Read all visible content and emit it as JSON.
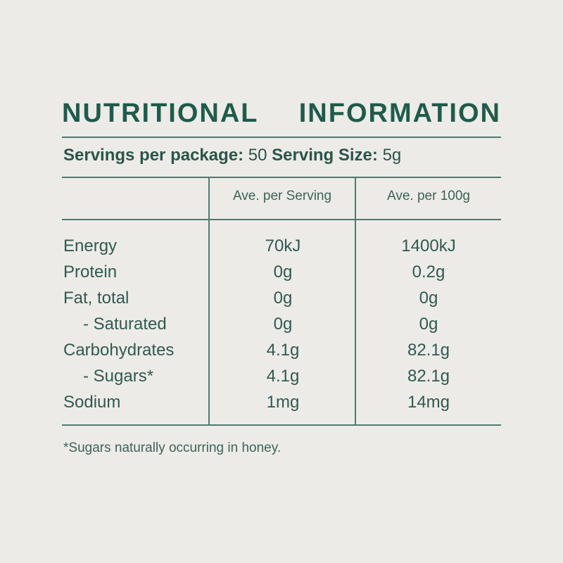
{
  "title": "NUTRITIONAL INFORMATION",
  "servings": {
    "per_package_label": "Servings per package:",
    "per_package_value": "50",
    "size_label": "Serving Size:",
    "size_value": "5g"
  },
  "columns": [
    "Ave. per Serving",
    "Ave. per 100g"
  ],
  "rows": [
    {
      "name": "Energy",
      "serving": "70kJ",
      "per100": "1400kJ"
    },
    {
      "name": "Protein",
      "serving": "0g",
      "per100": "0.2g"
    },
    {
      "name": "Fat, total",
      "serving": "0g",
      "per100": "0g"
    },
    {
      "name": "  - Saturated",
      "serving": "0g",
      "per100": "0g"
    },
    {
      "name": "Carbohydrates",
      "serving": "4.1g",
      "per100": "82.1g"
    },
    {
      "name": "  - Sugars*",
      "serving": "4.1g",
      "per100": "82.1g"
    },
    {
      "name": "Sodium",
      "serving": "1mg",
      "per100": "14mg"
    }
  ],
  "footnote": "*Sugars naturally occurring in honey.",
  "colors": {
    "text": "#2c5a4e",
    "title": "#1f5b4b",
    "background": "#edebe8",
    "lines": "#4f7a6e"
  }
}
